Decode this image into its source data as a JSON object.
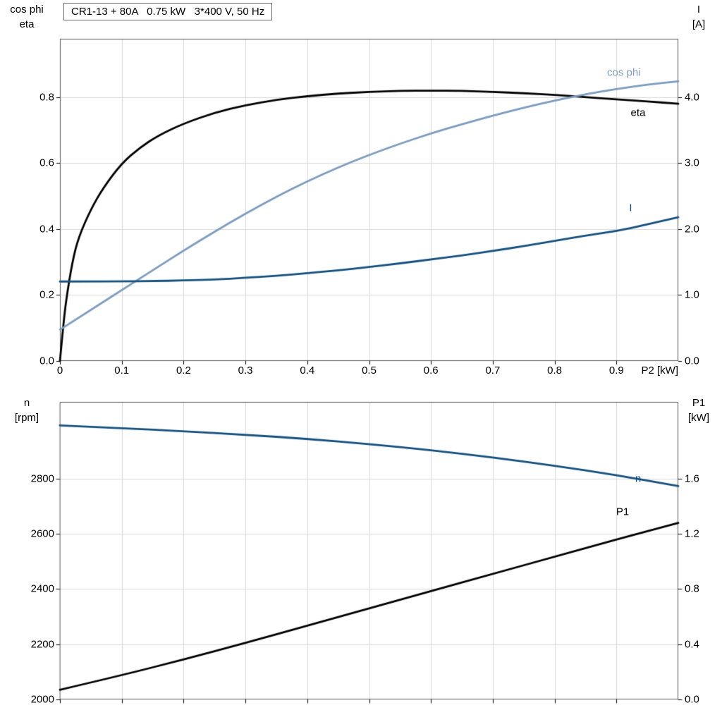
{
  "title_box": "CR1-13 + 80A   0.75 kW   3*400 V, 50 Hz",
  "colors": {
    "background": "#ffffff",
    "grid": "#d9d9d9",
    "frame": "#595959",
    "tick": "#000000",
    "text": "#000000"
  },
  "chart_data": [
    {
      "type": "line",
      "panel": "top",
      "xlabel": "P2 [kW]",
      "xlim": [
        0,
        1.0
      ],
      "x_tick_values": [
        0,
        0.1,
        0.2,
        0.3,
        0.4,
        0.5,
        0.6,
        0.7,
        0.8,
        0.9
      ],
      "x_tick_labels": [
        "0",
        "0.1",
        "0.2",
        "0.3",
        "0.4",
        "0.5",
        "0.6",
        "0.7",
        "0.8",
        "0.9"
      ],
      "left_axis": {
        "title_lines": [
          "cos phi",
          "eta"
        ],
        "lim": [
          0,
          0.977
        ],
        "tick_values": [
          0,
          0.2,
          0.4,
          0.6,
          0.8
        ],
        "tick_labels": [
          "0.0",
          "0.2",
          "0.4",
          "0.6",
          "0.8"
        ]
      },
      "right_axis": {
        "title_lines": [
          "I",
          "[A]"
        ],
        "lim": [
          0,
          4.885
        ],
        "tick_values": [
          0,
          1,
          2,
          3,
          4
        ],
        "tick_labels": [
          "0.0",
          "1.0",
          "2.0",
          "3.0",
          "4.0"
        ]
      },
      "series": [
        {
          "name": "eta",
          "label": "eta",
          "axis": "left",
          "color": "#000000",
          "label_pos": {
            "x": 0.935,
            "y": 0.753
          },
          "x": [
            0,
            0.005,
            0.01,
            0.02,
            0.03,
            0.05,
            0.07,
            0.1,
            0.13,
            0.16,
            0.2,
            0.25,
            0.3,
            0.35,
            0.4,
            0.45,
            0.5,
            0.55,
            0.6,
            0.65,
            0.7,
            0.75,
            0.8,
            0.85,
            0.9,
            0.95,
            1.0
          ],
          "y": [
            0,
            0.1,
            0.185,
            0.3,
            0.375,
            0.46,
            0.525,
            0.6,
            0.648,
            0.685,
            0.72,
            0.753,
            0.776,
            0.792,
            0.803,
            0.811,
            0.816,
            0.819,
            0.82,
            0.819,
            0.816,
            0.812,
            0.807,
            0.8,
            0.793,
            0.787,
            0.78
          ]
        },
        {
          "name": "cos phi",
          "label": "cos phi",
          "axis": "left",
          "color": "#7d9cbe",
          "label_pos": {
            "x": 0.912,
            "y": 0.875
          },
          "x": [
            0,
            0.05,
            0.1,
            0.15,
            0.2,
            0.25,
            0.3,
            0.35,
            0.4,
            0.45,
            0.5,
            0.55,
            0.6,
            0.65,
            0.7,
            0.75,
            0.8,
            0.85,
            0.9,
            0.95,
            1.0
          ],
          "y": [
            0.095,
            0.155,
            0.215,
            0.275,
            0.335,
            0.392,
            0.447,
            0.498,
            0.545,
            0.587,
            0.625,
            0.659,
            0.69,
            0.718,
            0.744,
            0.768,
            0.79,
            0.809,
            0.825,
            0.838,
            0.848
          ]
        },
        {
          "name": "I",
          "label": "I",
          "axis": "right",
          "color": "#14507c",
          "label_pos": {
            "x": 0.923,
            "y": 2.32
          },
          "x": [
            0,
            0.05,
            0.1,
            0.15,
            0.2,
            0.25,
            0.3,
            0.35,
            0.4,
            0.45,
            0.5,
            0.55,
            0.6,
            0.65,
            0.7,
            0.75,
            0.8,
            0.85,
            0.9,
            0.95,
            1.0
          ],
          "y": [
            1.205,
            1.205,
            1.207,
            1.212,
            1.22,
            1.235,
            1.26,
            1.29,
            1.33,
            1.375,
            1.425,
            1.48,
            1.54,
            1.6,
            1.67,
            1.74,
            1.82,
            1.9,
            1.97,
            2.07,
            2.18
          ]
        }
      ]
    },
    {
      "type": "line",
      "panel": "bottom",
      "xlabel": "",
      "xlim": [
        0,
        1.0
      ],
      "x_tick_values": [
        0,
        0.1,
        0.2,
        0.3,
        0.4,
        0.5,
        0.6,
        0.7,
        0.8,
        0.9
      ],
      "x_tick_labels": [],
      "left_axis": {
        "title_lines": [
          "n",
          "[rpm]"
        ],
        "lim": [
          2000,
          3078
        ],
        "tick_values": [
          2000,
          2200,
          2400,
          2600,
          2800
        ],
        "tick_labels": [
          "2000",
          "2200",
          "2400",
          "2600",
          "2800"
        ]
      },
      "right_axis": {
        "title_lines": [
          "P1",
          "[kW]"
        ],
        "lim": [
          0,
          2.157
        ],
        "tick_values": [
          0,
          0.4,
          0.8,
          1.2,
          1.6
        ],
        "tick_labels": [
          "0.0",
          "0.4",
          "0.8",
          "1.2",
          "1.6"
        ]
      },
      "series": [
        {
          "name": "n",
          "label": "n",
          "axis": "left",
          "color": "#14507c",
          "label_pos": {
            "x": 0.935,
            "y": 2800
          },
          "x": [
            0,
            0.1,
            0.2,
            0.3,
            0.4,
            0.5,
            0.6,
            0.7,
            0.8,
            0.9,
            1.0
          ],
          "y": [
            2993,
            2983,
            2972,
            2959,
            2944,
            2925,
            2903,
            2877,
            2847,
            2813,
            2773
          ]
        },
        {
          "name": "P1",
          "label": "P1",
          "axis": "right",
          "color": "#000000",
          "label_pos": {
            "x": 0.91,
            "y": 1.36
          },
          "x": [
            0,
            0.1,
            0.2,
            0.3,
            0.4,
            0.5,
            0.6,
            0.7,
            0.8,
            0.9,
            1.0
          ],
          "y": [
            0.07,
            0.175,
            0.29,
            0.41,
            0.535,
            0.66,
            0.785,
            0.91,
            1.035,
            1.16,
            1.28
          ]
        }
      ]
    }
  ]
}
